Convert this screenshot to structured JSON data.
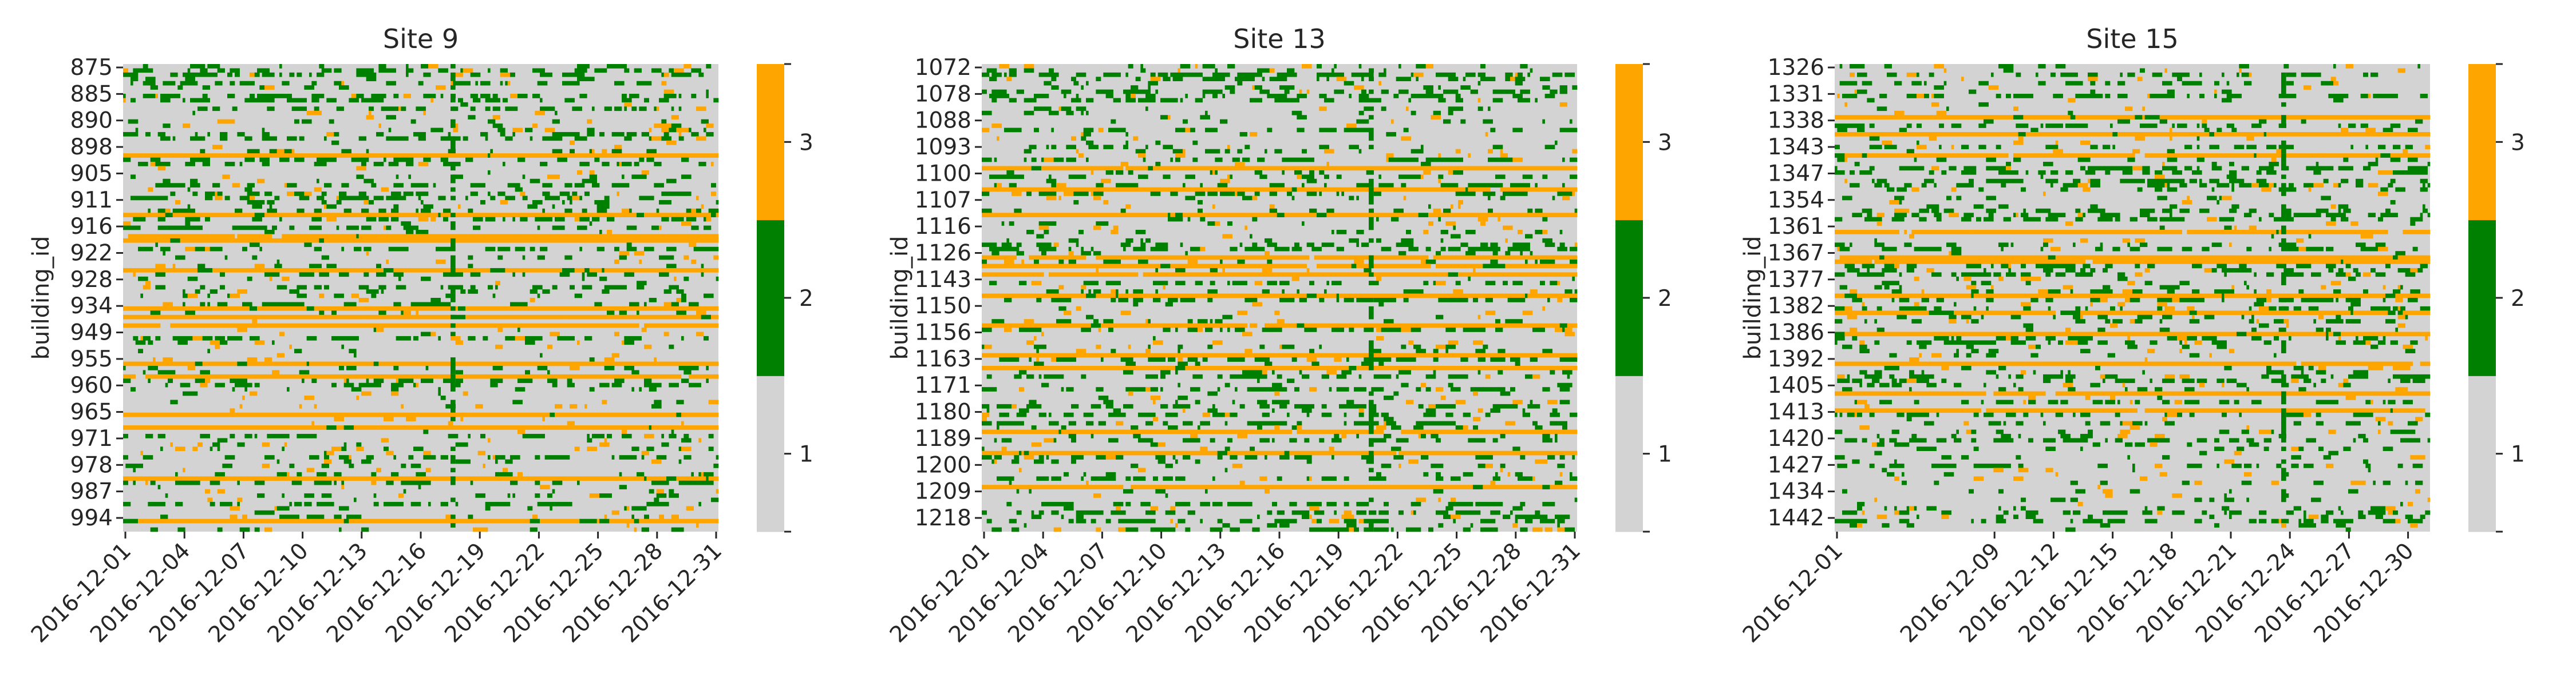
{
  "figure": {
    "background": "#ffffff"
  },
  "colormap": {
    "levels": [
      1,
      2,
      3
    ],
    "colors": {
      "1": "#d3d3d3",
      "2": "#008000",
      "3": "#ffa500"
    },
    "colorbar_ticks": [
      "1",
      "2",
      "3"
    ]
  },
  "chart_data": [
    {
      "type": "heatmap",
      "title": "Site 9",
      "xlabel": "",
      "ylabel": "building_id",
      "x_range": [
        "2016-12-01",
        "2016-12-31"
      ],
      "x_ticks": [
        "2016-12-01",
        "2016-12-04",
        "2016-12-07",
        "2016-12-10",
        "2016-12-13",
        "2016-12-16",
        "2016-12-19",
        "2016-12-22",
        "2016-12-25",
        "2016-12-28",
        "2016-12-31"
      ],
      "y_ticks": [
        "875",
        "885",
        "890",
        "898",
        "905",
        "911",
        "916",
        "922",
        "928",
        "934",
        "949",
        "955",
        "960",
        "965",
        "971",
        "978",
        "987",
        "994"
      ],
      "value_levels": [
        1,
        2,
        3
      ],
      "dominant_value": 1
    },
    {
      "type": "heatmap",
      "title": "Site 13",
      "xlabel": "",
      "ylabel": "building_id",
      "x_range": [
        "2016-12-01",
        "2016-12-31"
      ],
      "x_ticks": [
        "2016-12-01",
        "2016-12-04",
        "2016-12-07",
        "2016-12-10",
        "2016-12-13",
        "2016-12-16",
        "2016-12-19",
        "2016-12-22",
        "2016-12-25",
        "2016-12-28",
        "2016-12-31"
      ],
      "y_ticks": [
        "1072",
        "1078",
        "1088",
        "1093",
        "1100",
        "1107",
        "1116",
        "1126",
        "1143",
        "1150",
        "1156",
        "1163",
        "1171",
        "1180",
        "1189",
        "1200",
        "1209",
        "1218"
      ],
      "value_levels": [
        1,
        2,
        3
      ],
      "dominant_value": 1
    },
    {
      "type": "heatmap",
      "title": "Site 15",
      "xlabel": "",
      "ylabel": "building_id",
      "x_range": [
        "2016-12-01",
        "2016-12-31"
      ],
      "x_ticks": [
        "2016-12-01",
        "2016-12-09",
        "2016-12-12",
        "2016-12-15",
        "2016-12-18",
        "2016-12-21",
        "2016-12-24",
        "2016-12-27",
        "2016-12-30"
      ],
      "y_ticks": [
        "1326",
        "1331",
        "1338",
        "1343",
        "1347",
        "1354",
        "1361",
        "1367",
        "1377",
        "1382",
        "1386",
        "1392",
        "1405",
        "1413",
        "1420",
        "1427",
        "1434",
        "1442"
      ],
      "value_levels": [
        1,
        2,
        3
      ],
      "dominant_value": 1
    }
  ]
}
